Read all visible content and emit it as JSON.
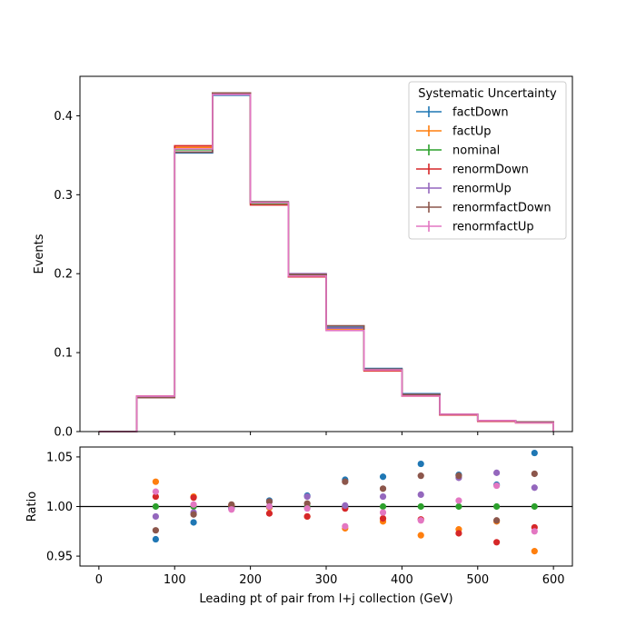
{
  "chart_data": [
    {
      "type": "line",
      "drawstyle": "step",
      "ylabel": "Events",
      "xlim": [
        -25,
        625
      ],
      "ylim": [
        0,
        0.45
      ],
      "x_edges": [
        0,
        50,
        100,
        150,
        200,
        250,
        300,
        350,
        400,
        450,
        500,
        550,
        600
      ],
      "xticks": [
        0,
        100,
        200,
        300,
        400,
        500,
        600
      ],
      "xtick_labels": [],
      "yticks": [
        0.0,
        0.1,
        0.2,
        0.3,
        0.4
      ],
      "ytick_labels": [
        "0.0",
        "0.1",
        "0.2",
        "0.3",
        "0.4"
      ],
      "legend": {
        "title": "Systematic Uncertainty",
        "placement": "top-right"
      },
      "series": [
        {
          "name": "factDown",
          "color": "#1f77b4",
          "values": [
            0.0,
            0.043,
            0.353,
            0.426,
            0.291,
            0.199,
            0.132,
            0.08,
            0.048,
            0.022,
            0.014,
            0.012
          ]
        },
        {
          "name": "factUp",
          "color": "#ff7f0e",
          "values": [
            0.0,
            0.045,
            0.36,
            0.429,
            0.29,
            0.198,
            0.129,
            0.077,
            0.045,
            0.021,
            0.014,
            0.011
          ]
        },
        {
          "name": "nominal",
          "color": "#2ca02c",
          "values": [
            0.0,
            0.044,
            0.357,
            0.428,
            0.289,
            0.198,
            0.131,
            0.078,
            0.046,
            0.022,
            0.014,
            0.012
          ]
        },
        {
          "name": "renormDown",
          "color": "#d62728",
          "values": [
            0.0,
            0.045,
            0.362,
            0.429,
            0.287,
            0.196,
            0.131,
            0.077,
            0.046,
            0.021,
            0.013,
            0.012
          ]
        },
        {
          "name": "renormUp",
          "color": "#9467bd",
          "values": [
            0.0,
            0.044,
            0.354,
            0.427,
            0.291,
            0.2,
            0.131,
            0.079,
            0.047,
            0.022,
            0.014,
            0.012
          ]
        },
        {
          "name": "renormfactDown",
          "color": "#8c564b",
          "values": [
            0.0,
            0.043,
            0.354,
            0.429,
            0.291,
            0.199,
            0.134,
            0.079,
            0.047,
            0.022,
            0.014,
            0.012
          ]
        },
        {
          "name": "renormfactUp",
          "color": "#e377c2",
          "values": [
            0.0,
            0.045,
            0.358,
            0.427,
            0.29,
            0.197,
            0.128,
            0.078,
            0.045,
            0.022,
            0.014,
            0.011
          ]
        }
      ]
    },
    {
      "type": "scatter",
      "xlabel": "Leading pt of pair from l+j collection (GeV)",
      "ylabel": "Ratio",
      "xlim": [
        -25,
        625
      ],
      "ylim": [
        0.94,
        1.06
      ],
      "reference_line": 1.0,
      "xticks": [
        0,
        100,
        200,
        300,
        400,
        500,
        600
      ],
      "xtick_labels": [
        "0",
        "100",
        "200",
        "300",
        "400",
        "500",
        "600"
      ],
      "yticks": [
        0.95,
        1.0,
        1.05
      ],
      "ytick_labels": [
        "0.95",
        "1.00",
        "1.05"
      ],
      "x": [
        75,
        125,
        175,
        225,
        275,
        325,
        375,
        425,
        475,
        525,
        575
      ],
      "series": [
        {
          "name": "factDown",
          "color": "#1f77b4",
          "values": [
            0.967,
            0.984,
            0.998,
            1.006,
            1.011,
            1.027,
            1.03,
            1.043,
            1.032,
            1.022,
            1.054
          ]
        },
        {
          "name": "factUp",
          "color": "#ff7f0e",
          "values": [
            1.025,
            1.01,
            1.001,
            0.999,
            0.99,
            0.978,
            0.985,
            0.971,
            0.977,
            0.985,
            0.955
          ]
        },
        {
          "name": "nominal",
          "color": "#2ca02c",
          "values": [
            1.0,
            1.0,
            1.0,
            1.0,
            1.0,
            1.0,
            1.0,
            1.0,
            1.0,
            1.0,
            1.0
          ]
        },
        {
          "name": "renormDown",
          "color": "#d62728",
          "values": [
            1.01,
            1.009,
            1.001,
            0.993,
            0.99,
            0.998,
            0.988,
            0.987,
            0.973,
            0.964,
            0.979
          ]
        },
        {
          "name": "renormUp",
          "color": "#9467bd",
          "values": [
            0.99,
            0.994,
            0.998,
            1.005,
            1.01,
            1.001,
            1.01,
            1.012,
            1.029,
            1.034,
            1.019
          ]
        },
        {
          "name": "renormfactDown",
          "color": "#8c564b",
          "values": [
            0.976,
            0.992,
            1.002,
            1.005,
            1.003,
            1.025,
            1.018,
            1.031,
            1.031,
            0.986,
            1.033
          ]
        },
        {
          "name": "renormfactUp",
          "color": "#e377c2",
          "values": [
            1.015,
            1.002,
            0.997,
            1.0,
            0.998,
            0.98,
            0.994,
            0.986,
            1.006,
            1.021,
            0.975
          ]
        }
      ]
    }
  ]
}
